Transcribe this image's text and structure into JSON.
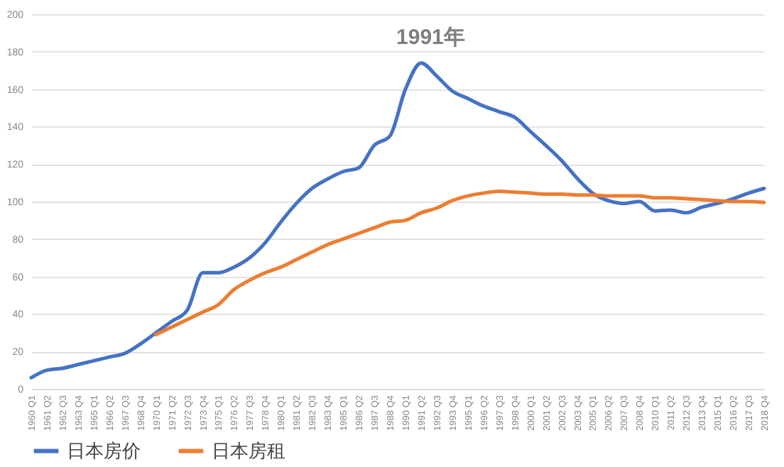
{
  "chart_data": {
    "type": "line",
    "categories": [
      "1960 Q1",
      "1961 Q2",
      "1962 Q3",
      "1963 Q4",
      "1965 Q1",
      "1966 Q2",
      "1967 Q3",
      "1968 Q4",
      "1970 Q1",
      "1971 Q2",
      "1972 Q3",
      "1973 Q4",
      "1975 Q1",
      "1976 Q2",
      "1977 Q3",
      "1978 Q4",
      "1980 Q1",
      "1981 Q2",
      "1982 Q3",
      "1983 Q4",
      "1985 Q1",
      "1986 Q2",
      "1987 Q3",
      "1988 Q4",
      "1990 Q1",
      "1991 Q2",
      "1992 Q3",
      "1993 Q4",
      "1995 Q1",
      "1996 Q2",
      "1997 Q3",
      "1998 Q4",
      "2000 Q1",
      "2001 Q2",
      "2002 Q3",
      "2003 Q4",
      "2005 Q1",
      "2006 Q2",
      "2007 Q3",
      "2008 Q4",
      "2010 Q1",
      "2011 Q2",
      "2012 Q3",
      "2013 Q4",
      "2015 Q1",
      "2016 Q2",
      "2017 Q3",
      "2018 Q4"
    ],
    "series": [
      {
        "name": "日本房价",
        "color": "#4472c4",
        "values": [
          6,
          10,
          11,
          13,
          15,
          17,
          19,
          24,
          30,
          36,
          42,
          62,
          62,
          65,
          70,
          78,
          89,
          99,
          107,
          112,
          116,
          118,
          130,
          135,
          160,
          174,
          167,
          159,
          155,
          151,
          148,
          145,
          137.5,
          130,
          122,
          112.5,
          104.5,
          100.5,
          99,
          100,
          95,
          95.5,
          94,
          97,
          99,
          101.5,
          104.5,
          107
        ]
      },
      {
        "name": "日本房租",
        "color": "#ed7d31",
        "values": [
          null,
          null,
          null,
          null,
          null,
          null,
          null,
          null,
          29,
          33,
          37,
          41,
          45,
          53,
          58,
          62,
          65,
          69,
          73,
          77,
          80,
          83,
          86,
          89,
          90,
          94,
          96.5,
          100.5,
          103,
          104.5,
          105.5,
          105,
          104.5,
          104,
          104,
          103.5,
          103.5,
          103,
          103,
          103,
          102,
          102,
          101.5,
          101,
          100.5,
          100,
          100,
          99.5
        ]
      }
    ],
    "ylim": [
      0,
      200
    ],
    "yticks": [
      0,
      20,
      40,
      60,
      80,
      100,
      120,
      140,
      160,
      180,
      200
    ],
    "grid": "y",
    "legend": "bottom",
    "marker": "none",
    "line_style": "solid",
    "annotations": [
      "1991年"
    ]
  }
}
